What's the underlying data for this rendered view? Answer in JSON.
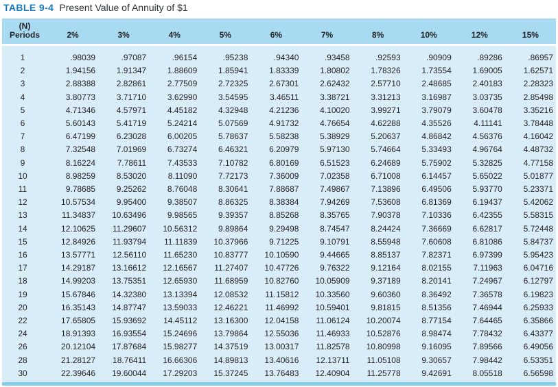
{
  "title": {
    "label": "TABLE 9-4",
    "text": "Present Value of Annuity of $1"
  },
  "table": {
    "periods_header_line1": "(N)",
    "periods_header_line2": "Periods",
    "columns": [
      "2%",
      "3%",
      "4%",
      "5%",
      "6%",
      "7%",
      "8%",
      "10%",
      "12%",
      "15%"
    ],
    "rows": [
      {
        "period": "1",
        "values": [
          ".98039",
          ".97087",
          ".96154",
          ".95238",
          ".94340",
          ".93458",
          ".92593",
          ".90909",
          ".89286",
          ".86957"
        ]
      },
      {
        "period": "2",
        "values": [
          "1.94156",
          "1.91347",
          "1.88609",
          "1.85941",
          "1.83339",
          "1.80802",
          "1.78326",
          "1.73554",
          "1.69005",
          "1.62571"
        ]
      },
      {
        "period": "3",
        "values": [
          "2.88388",
          "2.82861",
          "2.77509",
          "2.72325",
          "2.67301",
          "2.62432",
          "2.57710",
          "2.48685",
          "2.40183",
          "2.28323"
        ]
      },
      {
        "period": "4",
        "values": [
          "3.80773",
          "3.71710",
          "3.62990",
          "3.54595",
          "3.46511",
          "3.38721",
          "3.31213",
          "3.16987",
          "3.03735",
          "2.85498"
        ]
      },
      {
        "period": "5",
        "values": [
          "4.71346",
          "4.57971",
          "4.45182",
          "4.32948",
          "4.21236",
          "4.10020",
          "3.99271",
          "3.79079",
          "3.60478",
          "3.35216"
        ]
      },
      {
        "period": "6",
        "values": [
          "5.60143",
          "5.41719",
          "5.24214",
          "5.07569",
          "4.91732",
          "4.76654",
          "4.62288",
          "4.35526",
          "4.11141",
          "3.78448"
        ]
      },
      {
        "period": "7",
        "values": [
          "6.47199",
          "6.23028",
          "6.00205",
          "5.78637",
          "5.58238",
          "5.38929",
          "5.20637",
          "4.86842",
          "4.56376",
          "4.16042"
        ]
      },
      {
        "period": "8",
        "values": [
          "7.32548",
          "7.01969",
          "6.73274",
          "6.46321",
          "6.20979",
          "5.97130",
          "5.74664",
          "5.33493",
          "4.96764",
          "4.48732"
        ]
      },
      {
        "period": "9",
        "values": [
          "8.16224",
          "7.78611",
          "7.43533",
          "7.10782",
          "6.80169",
          "6.51523",
          "6.24689",
          "5.75902",
          "5.32825",
          "4.77158"
        ]
      },
      {
        "period": "10",
        "values": [
          "8.98259",
          "8.53020",
          "8.11090",
          "7.72173",
          "7.36009",
          "7.02358",
          "6.71008",
          "6.14457",
          "5.65022",
          "5.01877"
        ]
      },
      {
        "period": "11",
        "values": [
          "9.78685",
          "9.25262",
          "8.76048",
          "8.30641",
          "7.88687",
          "7.49867",
          "7.13896",
          "6.49506",
          "5.93770",
          "5.23371"
        ]
      },
      {
        "period": "12",
        "values": [
          "10.57534",
          "9.95400",
          "9.38507",
          "8.86325",
          "8.38384",
          "7.94269",
          "7.53608",
          "6.81369",
          "6.19437",
          "5.42062"
        ]
      },
      {
        "period": "13",
        "values": [
          "11.34837",
          "10.63496",
          "9.98565",
          "9.39357",
          "8.85268",
          "8.35765",
          "7.90378",
          "7.10336",
          "6.42355",
          "5.58315"
        ]
      },
      {
        "period": "14",
        "values": [
          "12.10625",
          "11.29607",
          "10.56312",
          "9.89864",
          "9.29498",
          "8.74547",
          "8.24424",
          "7.36669",
          "6.62817",
          "5.72448"
        ]
      },
      {
        "period": "15",
        "values": [
          "12.84926",
          "11.93794",
          "11.11839",
          "10.37966",
          "9.71225",
          "9.10791",
          "8.55948",
          "7.60608",
          "6.81086",
          "5.84737"
        ]
      },
      {
        "period": "16",
        "values": [
          "13.57771",
          "12.56110",
          "11.65230",
          "10.83777",
          "10.10590",
          "9.44665",
          "8.85137",
          "7.82371",
          "6.97399",
          "5.95423"
        ]
      },
      {
        "period": "17",
        "values": [
          "14.29187",
          "13.16612",
          "12.16567",
          "11.27407",
          "10.47726",
          "9.76322",
          "9.12164",
          "8.02155",
          "7.11963",
          "6.04716"
        ]
      },
      {
        "period": "18",
        "values": [
          "14.99203",
          "13.75351",
          "12.65930",
          "11.68959",
          "10.82760",
          "10.05909",
          "9.37189",
          "8.20141",
          "7.24967",
          "6.12797"
        ]
      },
      {
        "period": "19",
        "values": [
          "15.67846",
          "14.32380",
          "13.13394",
          "12.08532",
          "11.15812",
          "10.33560",
          "9.60360",
          "8.36492",
          "7.36578",
          "6.19823"
        ]
      },
      {
        "period": "20",
        "values": [
          "16.35143",
          "14.87747",
          "13.59033",
          "12.46221",
          "11.46992",
          "10.59401",
          "9.81815",
          "8.51356",
          "7.46944",
          "6.25933"
        ]
      },
      {
        "period": "22",
        "values": [
          "17.65805",
          "15.93692",
          "14.45112",
          "13.16300",
          "12.04158",
          "11.06124",
          "10.20074",
          "8.77154",
          "7.64465",
          "6.35866"
        ]
      },
      {
        "period": "24",
        "values": [
          "18.91393",
          "16.93554",
          "15.24696",
          "13.79864",
          "12.55036",
          "11.46933",
          "10.52876",
          "8.98474",
          "7.78432",
          "6.43377"
        ]
      },
      {
        "period": "26",
        "values": [
          "20.12104",
          "17.87684",
          "15.98277",
          "14.37519",
          "13.00317",
          "11.82578",
          "10.80998",
          "9.16095",
          "7.89566",
          "6.49056"
        ]
      },
      {
        "period": "28",
        "values": [
          "21.28127",
          "18.76411",
          "16.66306",
          "14.89813",
          "13.40616",
          "12.13711",
          "11.05108",
          "9.30657",
          "7.98442",
          "6.53351"
        ]
      },
      {
        "period": "30",
        "values": [
          "22.39646",
          "19.60044",
          "17.29203",
          "15.37245",
          "13.76483",
          "12.40904",
          "11.25778",
          "9.42691",
          "8.05518",
          "6.56598"
        ]
      }
    ]
  },
  "colors": {
    "title_accent": "#1779bb",
    "header_bg": "#a8dbf1",
    "body_bg": "#d9edf8",
    "bottom_bar": "#85cdec",
    "text": "#231f20"
  }
}
